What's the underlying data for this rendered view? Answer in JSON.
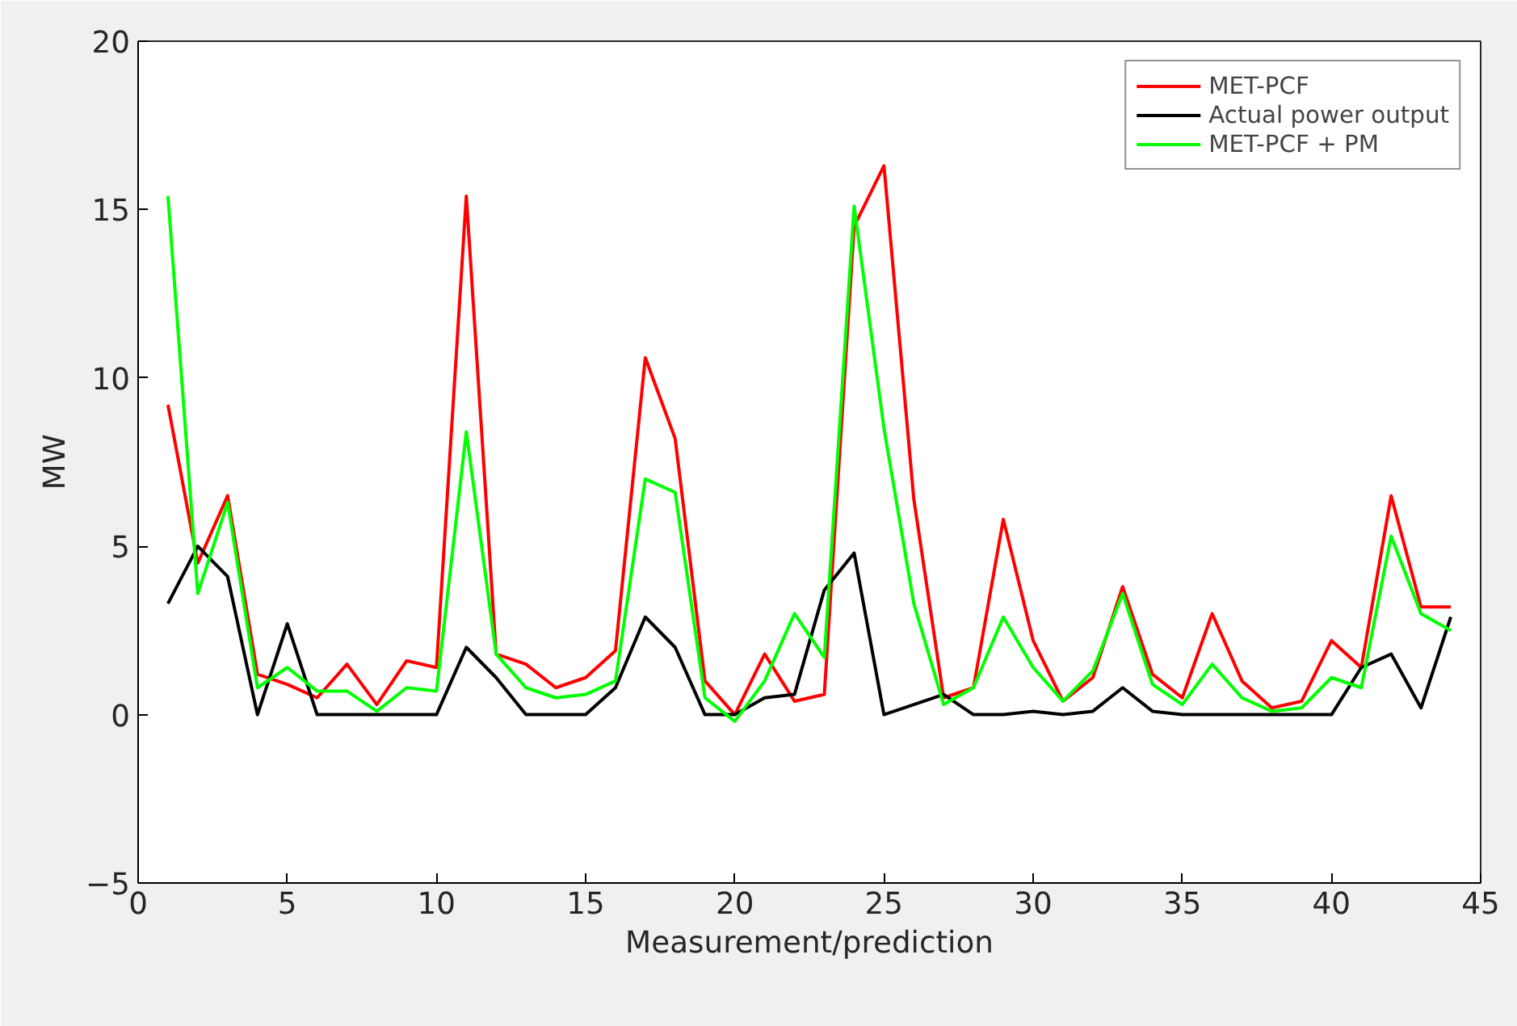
{
  "chart_data": {
    "type": "line",
    "xlabel": "Measurement/prediction",
    "ylabel": "MW",
    "x": [
      1,
      2,
      3,
      4,
      5,
      6,
      7,
      8,
      9,
      10,
      11,
      12,
      13,
      14,
      15,
      16,
      17,
      18,
      19,
      20,
      21,
      22,
      23,
      24,
      25,
      26,
      27,
      28,
      29,
      30,
      31,
      32,
      33,
      34,
      35,
      36,
      37,
      38,
      39,
      40,
      41,
      42,
      43,
      44
    ],
    "series": [
      {
        "name": "MET-PCF",
        "color": "#ff0000",
        "values": [
          9.2,
          4.5,
          6.5,
          1.2,
          0.9,
          0.5,
          1.5,
          0.3,
          1.6,
          1.4,
          15.4,
          1.8,
          1.5,
          0.8,
          1.1,
          1.9,
          10.6,
          8.2,
          1.0,
          0.0,
          1.8,
          0.4,
          0.6,
          14.5,
          16.3,
          6.4,
          0.5,
          0.8,
          5.8,
          2.2,
          0.4,
          1.1,
          3.8,
          1.2,
          0.5,
          3.0,
          1.0,
          0.2,
          0.4,
          2.2,
          1.4,
          6.5,
          3.2,
          3.2
        ]
      },
      {
        "name": "Actual power output",
        "color": "#000000",
        "values": [
          3.3,
          5.0,
          4.1,
          0.0,
          2.7,
          0,
          0,
          0,
          0,
          0,
          2.0,
          1.1,
          0,
          0,
          0,
          0.8,
          2.9,
          2.0,
          0,
          0,
          0.5,
          0.6,
          3.7,
          4.8,
          0.0,
          0.3,
          0.6,
          0,
          0,
          0.1,
          0,
          0.1,
          0.8,
          0.1,
          0,
          0,
          0,
          0,
          0,
          0,
          1.4,
          1.8,
          0.2,
          2.9
        ]
      },
      {
        "name": "MET-PCF + PM",
        "color": "#00ff00",
        "values": [
          15.4,
          3.6,
          6.3,
          0.8,
          1.4,
          0.7,
          0.7,
          0.1,
          0.8,
          0.7,
          8.4,
          1.8,
          0.8,
          0.5,
          0.6,
          1.0,
          7.0,
          6.6,
          0.5,
          -0.2,
          1.0,
          3.0,
          1.7,
          15.1,
          8.5,
          3.3,
          0.3,
          0.8,
          2.9,
          1.4,
          0.4,
          1.3,
          3.6,
          0.9,
          0.3,
          1.5,
          0.5,
          0.1,
          0.2,
          1.1,
          0.8,
          5.3,
          3.0,
          2.5
        ]
      }
    ],
    "xlim": [
      0,
      45
    ],
    "xticks": [
      0,
      5,
      10,
      15,
      20,
      25,
      30,
      35,
      40,
      45
    ],
    "ylim": [
      -5,
      20
    ],
    "yticks": [
      -5,
      0,
      5,
      10,
      15,
      20
    ],
    "grid": false,
    "legend": "top right",
    "marker": "none",
    "line_style": "solid"
  }
}
